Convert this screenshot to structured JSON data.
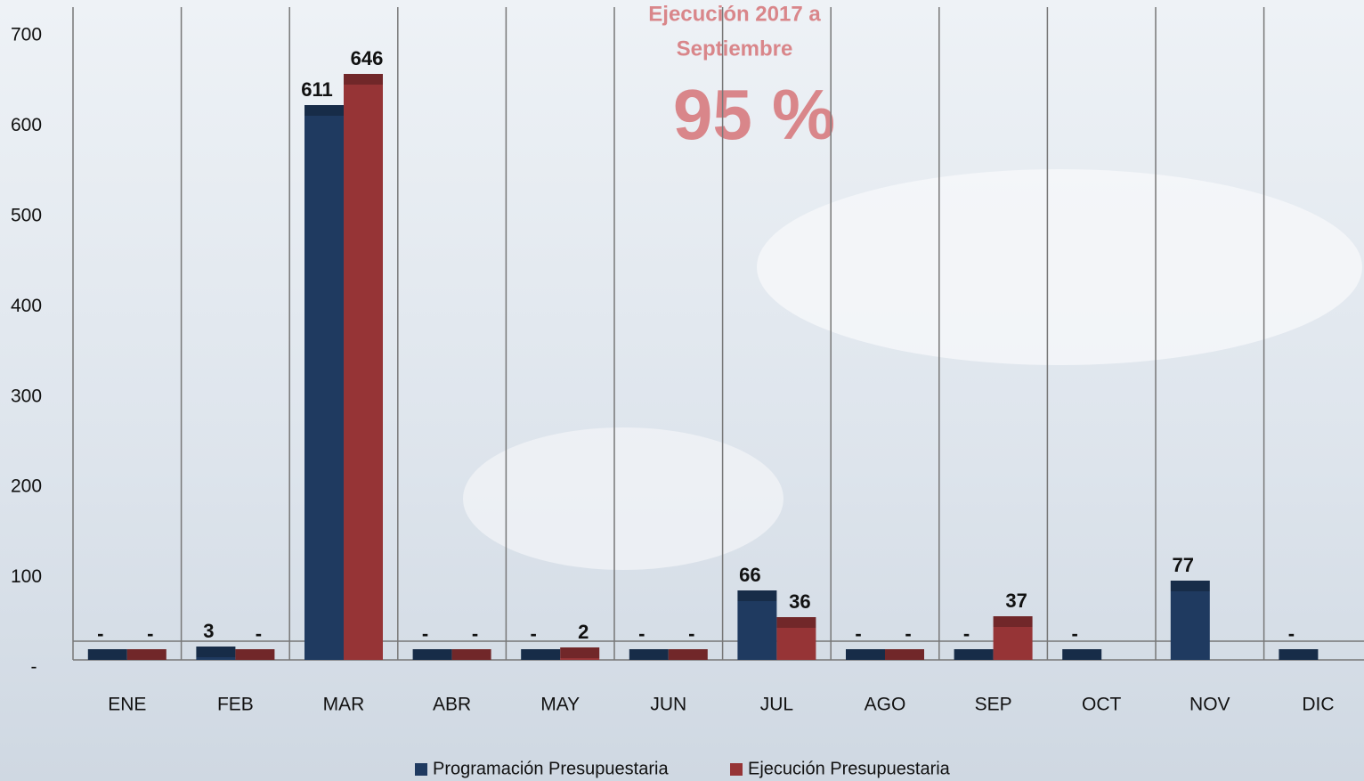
{
  "chart_data": {
    "type": "bar",
    "annotations": [
      "Ejecución 2017 a",
      "Septiembre",
      "95 %"
    ],
    "categories": [
      "ENE",
      "FEB",
      "MAR",
      "ABR",
      "MAY",
      "JUN",
      "JUL",
      "AGO",
      "SEP",
      "OCT",
      "NOV",
      "DIC"
    ],
    "series": [
      {
        "name": "Programación Presupuestaria",
        "color": "#1f3a60",
        "values": [
          0,
          3,
          611,
          0,
          0,
          0,
          66,
          0,
          0,
          0,
          77,
          0
        ],
        "value_labels": [
          "-",
          "3",
          "611",
          "-",
          "-",
          "-",
          "66",
          "-",
          "-",
          "-",
          "77",
          "-"
        ]
      },
      {
        "name": "Ejecución Presupuestaria",
        "color": "#963436",
        "values": [
          0,
          0,
          646,
          0,
          2,
          0,
          36,
          0,
          37,
          null,
          null,
          null
        ],
        "value_labels": [
          "-",
          "-",
          "646",
          "-",
          "2",
          "-",
          "36",
          "-",
          "37",
          null,
          null,
          null
        ]
      }
    ],
    "ylim": [
      0,
      700
    ],
    "yticks": [
      {
        "value": 0,
        "label": "-"
      },
      100,
      200,
      300,
      400,
      500,
      600,
      700
    ]
  }
}
